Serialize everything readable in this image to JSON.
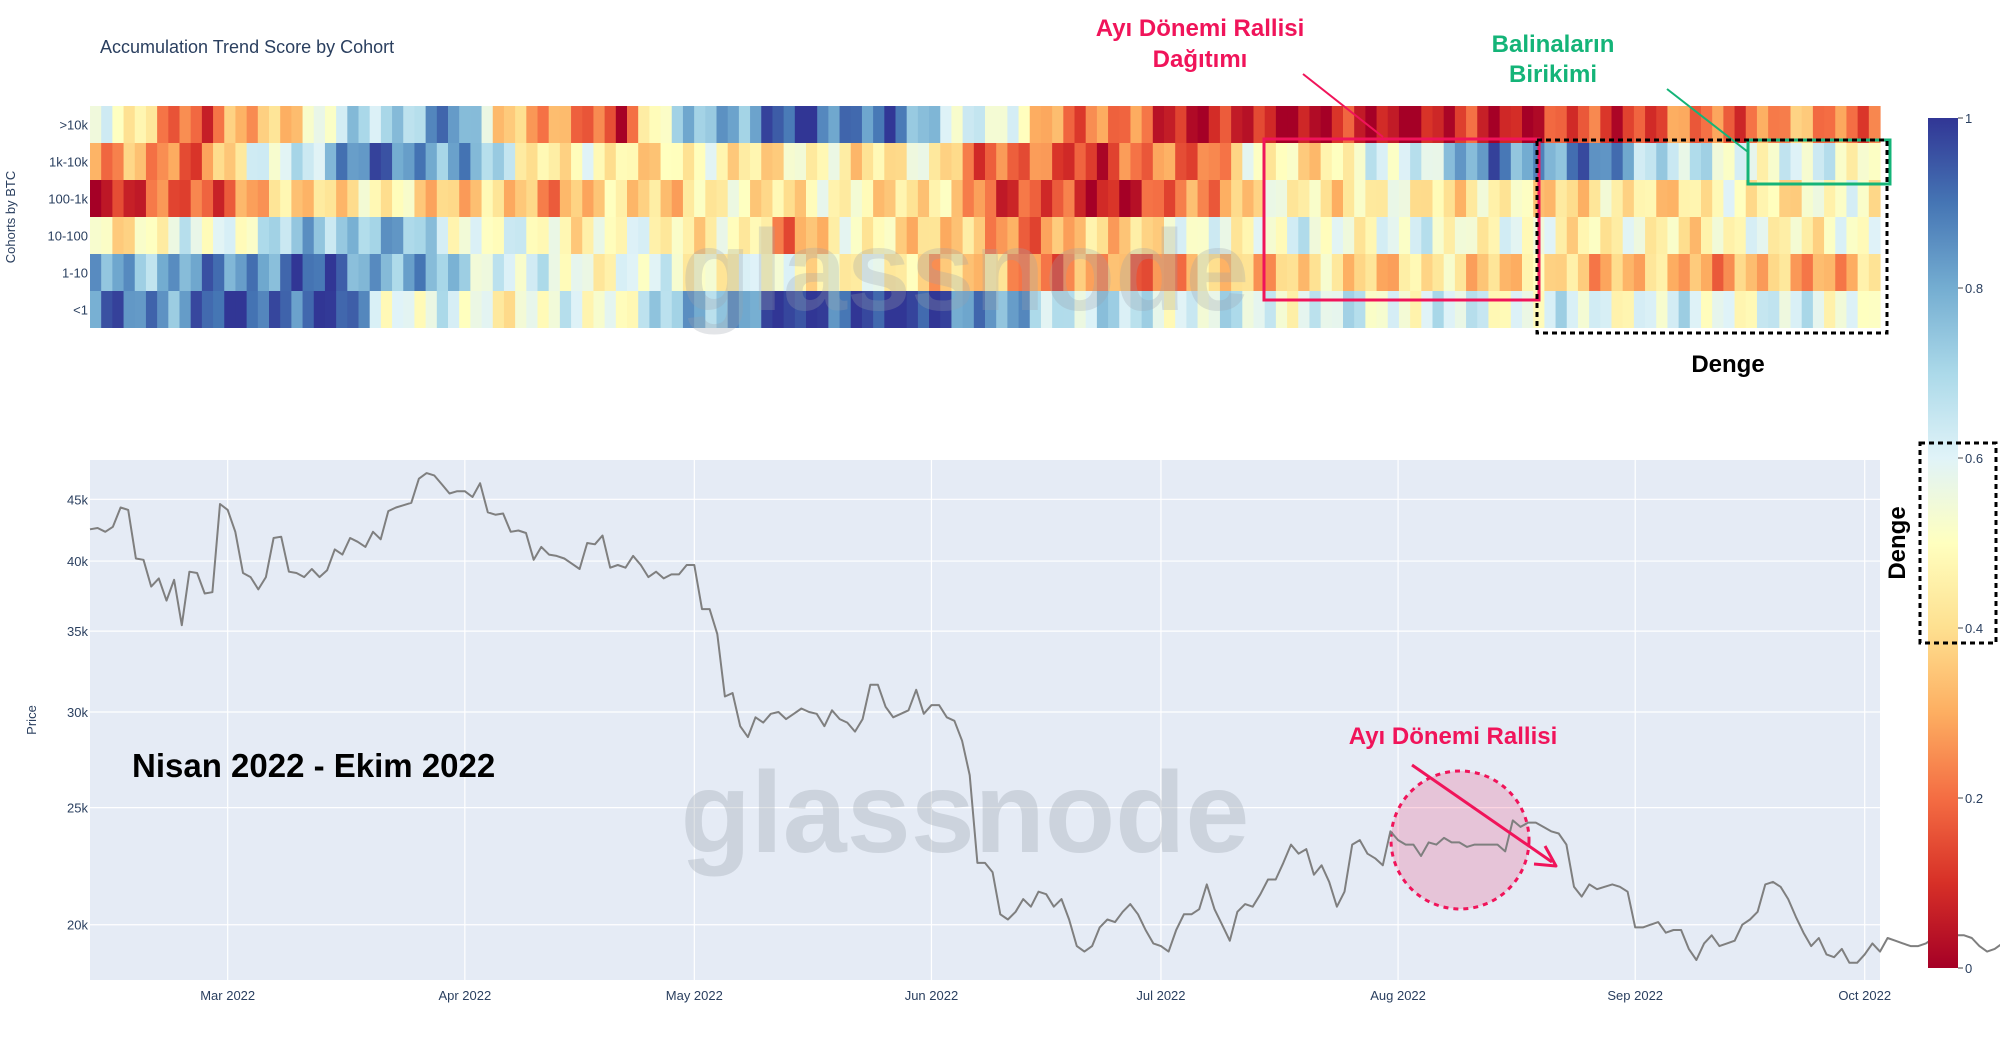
{
  "chart_data": [
    {
      "type": "heatmap",
      "title": "Accumulation Trend Score by Cohort",
      "ylabel": "Cohorts by BTC",
      "rows": [
        ">10k",
        "1k-10k",
        "100-1k",
        "10-100",
        "1-10",
        "<1"
      ],
      "x_range": [
        "2022-02-11",
        "2022-10-03"
      ],
      "colorscale": "RdYlBu",
      "zrange": [
        0,
        1
      ],
      "colorbar_ticks": [
        0,
        0.2,
        0.4,
        0.6,
        0.8,
        1
      ],
      "colorbar_tick_labels": [
        "0",
        "0.2",
        "0.4",
        "0.6",
        "0.8",
        "1"
      ],
      "row_profiles": [
        [
          [
            0,
            0.55
          ],
          [
            10,
            0.15
          ],
          [
            18,
            0.45
          ],
          [
            25,
            0.7
          ],
          [
            32,
            0.85
          ],
          [
            36,
            0.45
          ],
          [
            42,
            0.2
          ],
          [
            47,
            0.15
          ],
          [
            50,
            0.5
          ],
          [
            55,
            0.8
          ],
          [
            62,
            0.92
          ],
          [
            70,
            0.92
          ],
          [
            74,
            0.72
          ],
          [
            80,
            0.6
          ],
          [
            85,
            0.3
          ],
          [
            100,
            0.05
          ],
          [
            118,
            0.04
          ],
          [
            130,
            0.1
          ],
          [
            150,
            0.25
          ],
          [
            160,
            0.25
          ]
        ],
        [
          [
            0,
            0.3
          ],
          [
            8,
            0.2
          ],
          [
            14,
            0.5
          ],
          [
            22,
            0.82
          ],
          [
            28,
            0.9
          ],
          [
            34,
            0.75
          ],
          [
            40,
            0.45
          ],
          [
            50,
            0.45
          ],
          [
            60,
            0.45
          ],
          [
            70,
            0.45
          ],
          [
            75,
            0.45
          ],
          [
            78,
            0.25
          ],
          [
            85,
            0.15
          ],
          [
            90,
            0.15
          ],
          [
            100,
            0.25
          ],
          [
            103,
            0.45
          ],
          [
            110,
            0.45
          ],
          [
            115,
            0.55
          ],
          [
            120,
            0.7
          ],
          [
            125,
            0.85
          ],
          [
            135,
            0.85
          ],
          [
            140,
            0.7
          ],
          [
            145,
            0.55
          ],
          [
            150,
            0.6
          ],
          [
            155,
            0.55
          ],
          [
            160,
            0.5
          ]
        ],
        [
          [
            0,
            0.1
          ],
          [
            8,
            0.15
          ],
          [
            15,
            0.3
          ],
          [
            22,
            0.45
          ],
          [
            30,
            0.4
          ],
          [
            40,
            0.3
          ],
          [
            50,
            0.4
          ],
          [
            60,
            0.45
          ],
          [
            70,
            0.45
          ],
          [
            75,
            0.4
          ],
          [
            80,
            0.2
          ],
          [
            88,
            0.08
          ],
          [
            95,
            0.12
          ],
          [
            100,
            0.3
          ],
          [
            105,
            0.45
          ],
          [
            120,
            0.45
          ],
          [
            135,
            0.4
          ],
          [
            145,
            0.45
          ],
          [
            160,
            0.5
          ]
        ],
        [
          [
            0,
            0.45
          ],
          [
            10,
            0.55
          ],
          [
            18,
            0.7
          ],
          [
            25,
            0.8
          ],
          [
            32,
            0.6
          ],
          [
            40,
            0.5
          ],
          [
            50,
            0.5
          ],
          [
            58,
            0.45
          ],
          [
            62,
            0.25
          ],
          [
            66,
            0.45
          ],
          [
            72,
            0.45
          ],
          [
            78,
            0.3
          ],
          [
            85,
            0.25
          ],
          [
            92,
            0.4
          ],
          [
            100,
            0.55
          ],
          [
            110,
            0.55
          ],
          [
            120,
            0.55
          ],
          [
            130,
            0.5
          ],
          [
            140,
            0.45
          ],
          [
            150,
            0.5
          ],
          [
            160,
            0.5
          ]
        ],
        [
          [
            0,
            0.78
          ],
          [
            10,
            0.82
          ],
          [
            18,
            0.92
          ],
          [
            24,
            0.85
          ],
          [
            30,
            0.75
          ],
          [
            40,
            0.55
          ],
          [
            48,
            0.55
          ],
          [
            55,
            0.52
          ],
          [
            65,
            0.5
          ],
          [
            72,
            0.45
          ],
          [
            78,
            0.35
          ],
          [
            85,
            0.25
          ],
          [
            95,
            0.25
          ],
          [
            100,
            0.35
          ],
          [
            110,
            0.38
          ],
          [
            120,
            0.4
          ],
          [
            130,
            0.38
          ],
          [
            140,
            0.32
          ],
          [
            150,
            0.3
          ],
          [
            160,
            0.35
          ]
        ],
        [
          [
            0,
            0.85
          ],
          [
            8,
            0.88
          ],
          [
            12,
            0.95
          ],
          [
            22,
            0.95
          ],
          [
            26,
            0.6
          ],
          [
            36,
            0.52
          ],
          [
            46,
            0.55
          ],
          [
            62,
            0.97
          ],
          [
            68,
            0.98
          ],
          [
            76,
            0.98
          ],
          [
            80,
            0.8
          ],
          [
            85,
            0.7
          ],
          [
            90,
            0.65
          ],
          [
            100,
            0.6
          ],
          [
            130,
            0.58
          ],
          [
            160,
            0.58
          ]
        ]
      ]
    },
    {
      "type": "line",
      "ylabel": "Price",
      "x_ticks": [
        "Mar 2022",
        "Apr 2022",
        "May 2022",
        "Jun 2022",
        "Jul 2022",
        "Aug 2022",
        "Sep 2022",
        "Oct 2022"
      ],
      "y_ticks": [
        "20k",
        "25k",
        "30k",
        "35k",
        "40k",
        "45k"
      ],
      "y_tick_values": [
        20000,
        25000,
        30000,
        35000,
        40000,
        45000
      ],
      "y_scale": "log",
      "ylim": [
        18000,
        48500
      ],
      "x_start": "2022-02-11",
      "x_end": "2022-10-03",
      "series": [
        {
          "values": [
            42500,
            42600,
            42300,
            42700,
            44300,
            44100,
            40200,
            40100,
            38100,
            38700,
            37100,
            38600,
            35400,
            39200,
            39100,
            37600,
            37700,
            44600,
            44100,
            42300,
            39100,
            38800,
            37900,
            38800,
            41800,
            41900,
            39200,
            39100,
            38800,
            39400,
            38800,
            39300,
            40900,
            40500,
            41800,
            41500,
            41100,
            42300,
            41700,
            44000,
            44300,
            44500,
            44700,
            46800,
            47300,
            47100,
            46300,
            45500,
            45700,
            45700,
            45200,
            46400,
            43900,
            43700,
            43800,
            42300,
            42400,
            42200,
            40100,
            41100,
            40500,
            40400,
            40200,
            39800,
            39400,
            41400,
            41300,
            42000,
            39500,
            39700,
            39500,
            40400,
            39700,
            38800,
            39200,
            38700,
            39000,
            39000,
            39700,
            39700,
            36500,
            36500,
            34800,
            30900,
            31100,
            29200,
            28600,
            29700,
            29400,
            29900,
            30000,
            29600,
            29900,
            30200,
            30000,
            29900,
            29200,
            30100,
            29600,
            29400,
            28900,
            29600,
            31600,
            31600,
            30300,
            29700,
            29900,
            30100,
            31300,
            29900,
            30400,
            30400,
            29700,
            29500,
            28400,
            26600,
            22500,
            22500,
            22100,
            20400,
            20200,
            20500,
            21000,
            20700,
            21300,
            21200,
            20700,
            21000,
            20200,
            19200,
            19000,
            19200,
            19900,
            20200,
            20100,
            20500,
            20800,
            20400,
            19800,
            19300,
            19200,
            19000,
            19800,
            20400,
            20400,
            20600,
            21600,
            20600,
            20000,
            19400,
            20500,
            20800,
            20700,
            21200,
            21800,
            21800,
            22500,
            23300,
            22900,
            23100,
            22000,
            22400,
            21700,
            20700,
            21300,
            23300,
            23500,
            22900,
            22700,
            22400,
            23900,
            23500,
            23300,
            23300,
            22800,
            23400,
            23300,
            23600,
            23400,
            23400,
            23200,
            23300,
            23300,
            23300,
            23300,
            23000,
            24400,
            24100,
            24300,
            24300,
            24100,
            23900,
            23800,
            23300,
            21500,
            21100,
            21600,
            21400,
            21500,
            21600,
            21500,
            21300,
            19900,
            19900,
            20000,
            20100,
            19700,
            19800,
            19800,
            19100,
            18700,
            19300,
            19600,
            19200,
            19300,
            19400,
            20000,
            20200,
            20500,
            21600,
            21700,
            21500,
            21000,
            20300,
            19700,
            19200,
            19500,
            18900,
            18800,
            19100,
            18600,
            18600,
            18900,
            19300,
            19000,
            19500,
            19400,
            19300,
            19200,
            19200,
            19300,
            19500,
            19300,
            20300,
            19600,
            19600,
            19500,
            19200,
            19000,
            19100,
            19300,
            19300,
            19500
          ]
        }
      ]
    }
  ],
  "annotations": {
    "distribution_title": [
      "Ayı Dönemi Rallisi",
      "Dağıtımı"
    ],
    "whales_title": [
      "Balinaların",
      "Birikimi"
    ],
    "equilibrium_top": "Denge",
    "equilibrium_side": "Denge",
    "period": "Nisan 2022 - Ekim 2022",
    "bear_rally": "Ayı Dönemi Rallisi",
    "watermark": "glassnode"
  },
  "colors": {
    "pink": "#f0145a",
    "green": "#14b478",
    "line": "#7f7f7f",
    "plot_bg": "#e5ebf5",
    "axis_text": "#2a3f5f"
  }
}
